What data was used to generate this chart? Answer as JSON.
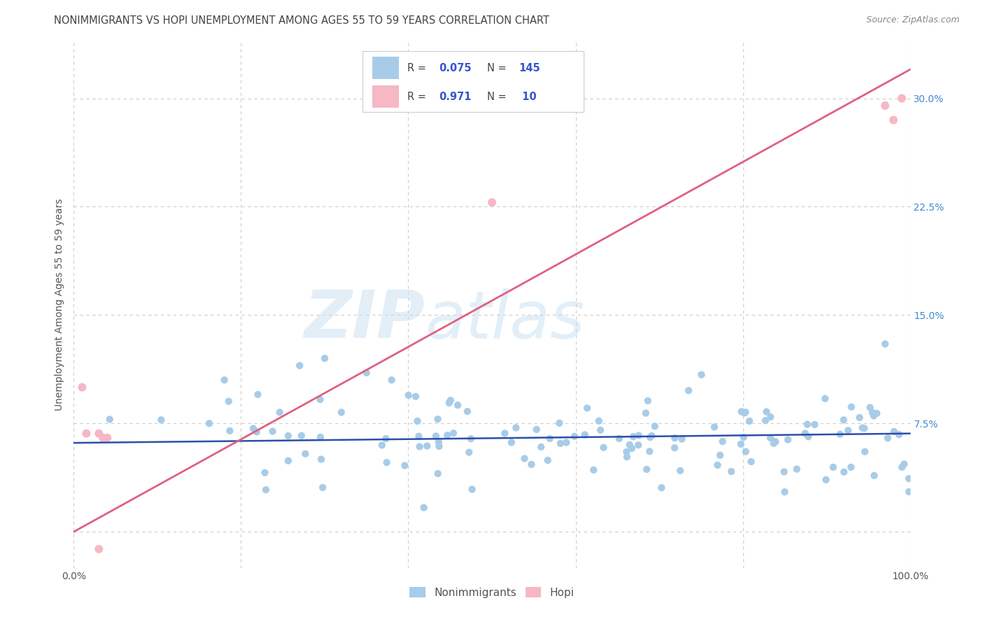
{
  "title": "NONIMMIGRANTS VS HOPI UNEMPLOYMENT AMONG AGES 55 TO 59 YEARS CORRELATION CHART",
  "source": "Source: ZipAtlas.com",
  "ylabel": "Unemployment Among Ages 55 to 59 years",
  "xlim": [
    0,
    1.0
  ],
  "ylim": [
    -0.025,
    0.34
  ],
  "xticks": [
    0.0,
    0.2,
    0.4,
    0.6,
    0.8,
    1.0
  ],
  "xticklabels": [
    "0.0%",
    "",
    "",
    "",
    "",
    "100.0%"
  ],
  "yticks": [
    0.0,
    0.075,
    0.15,
    0.225,
    0.3
  ],
  "yticklabels": [
    "",
    "7.5%",
    "15.0%",
    "22.5%",
    "30.0%"
  ],
  "nonimmigrant_R": "0.075",
  "nonimmigrant_N": "145",
  "hopi_R": "0.971",
  "hopi_N": "10",
  "scatter_blue_color": "#a8cce8",
  "scatter_pink_color": "#f5b8c4",
  "line_blue_color": "#2b4faa",
  "line_pink_color": "#e06080",
  "legend_text_color": "#3355cc",
  "title_color": "#444444",
  "axis_label_color": "#555555",
  "tick_label_color_right": "#4488cc",
  "background_color": "#ffffff",
  "grid_color": "#cccccc",
  "watermark_zip": "ZIP",
  "watermark_atlas": "atlas",
  "nonimmigrant_line_x": [
    0.0,
    1.0
  ],
  "nonimmigrant_line_y": [
    0.0615,
    0.068
  ],
  "hopi_line_x": [
    0.0,
    1.0
  ],
  "hopi_line_y": [
    0.0,
    0.32
  ]
}
